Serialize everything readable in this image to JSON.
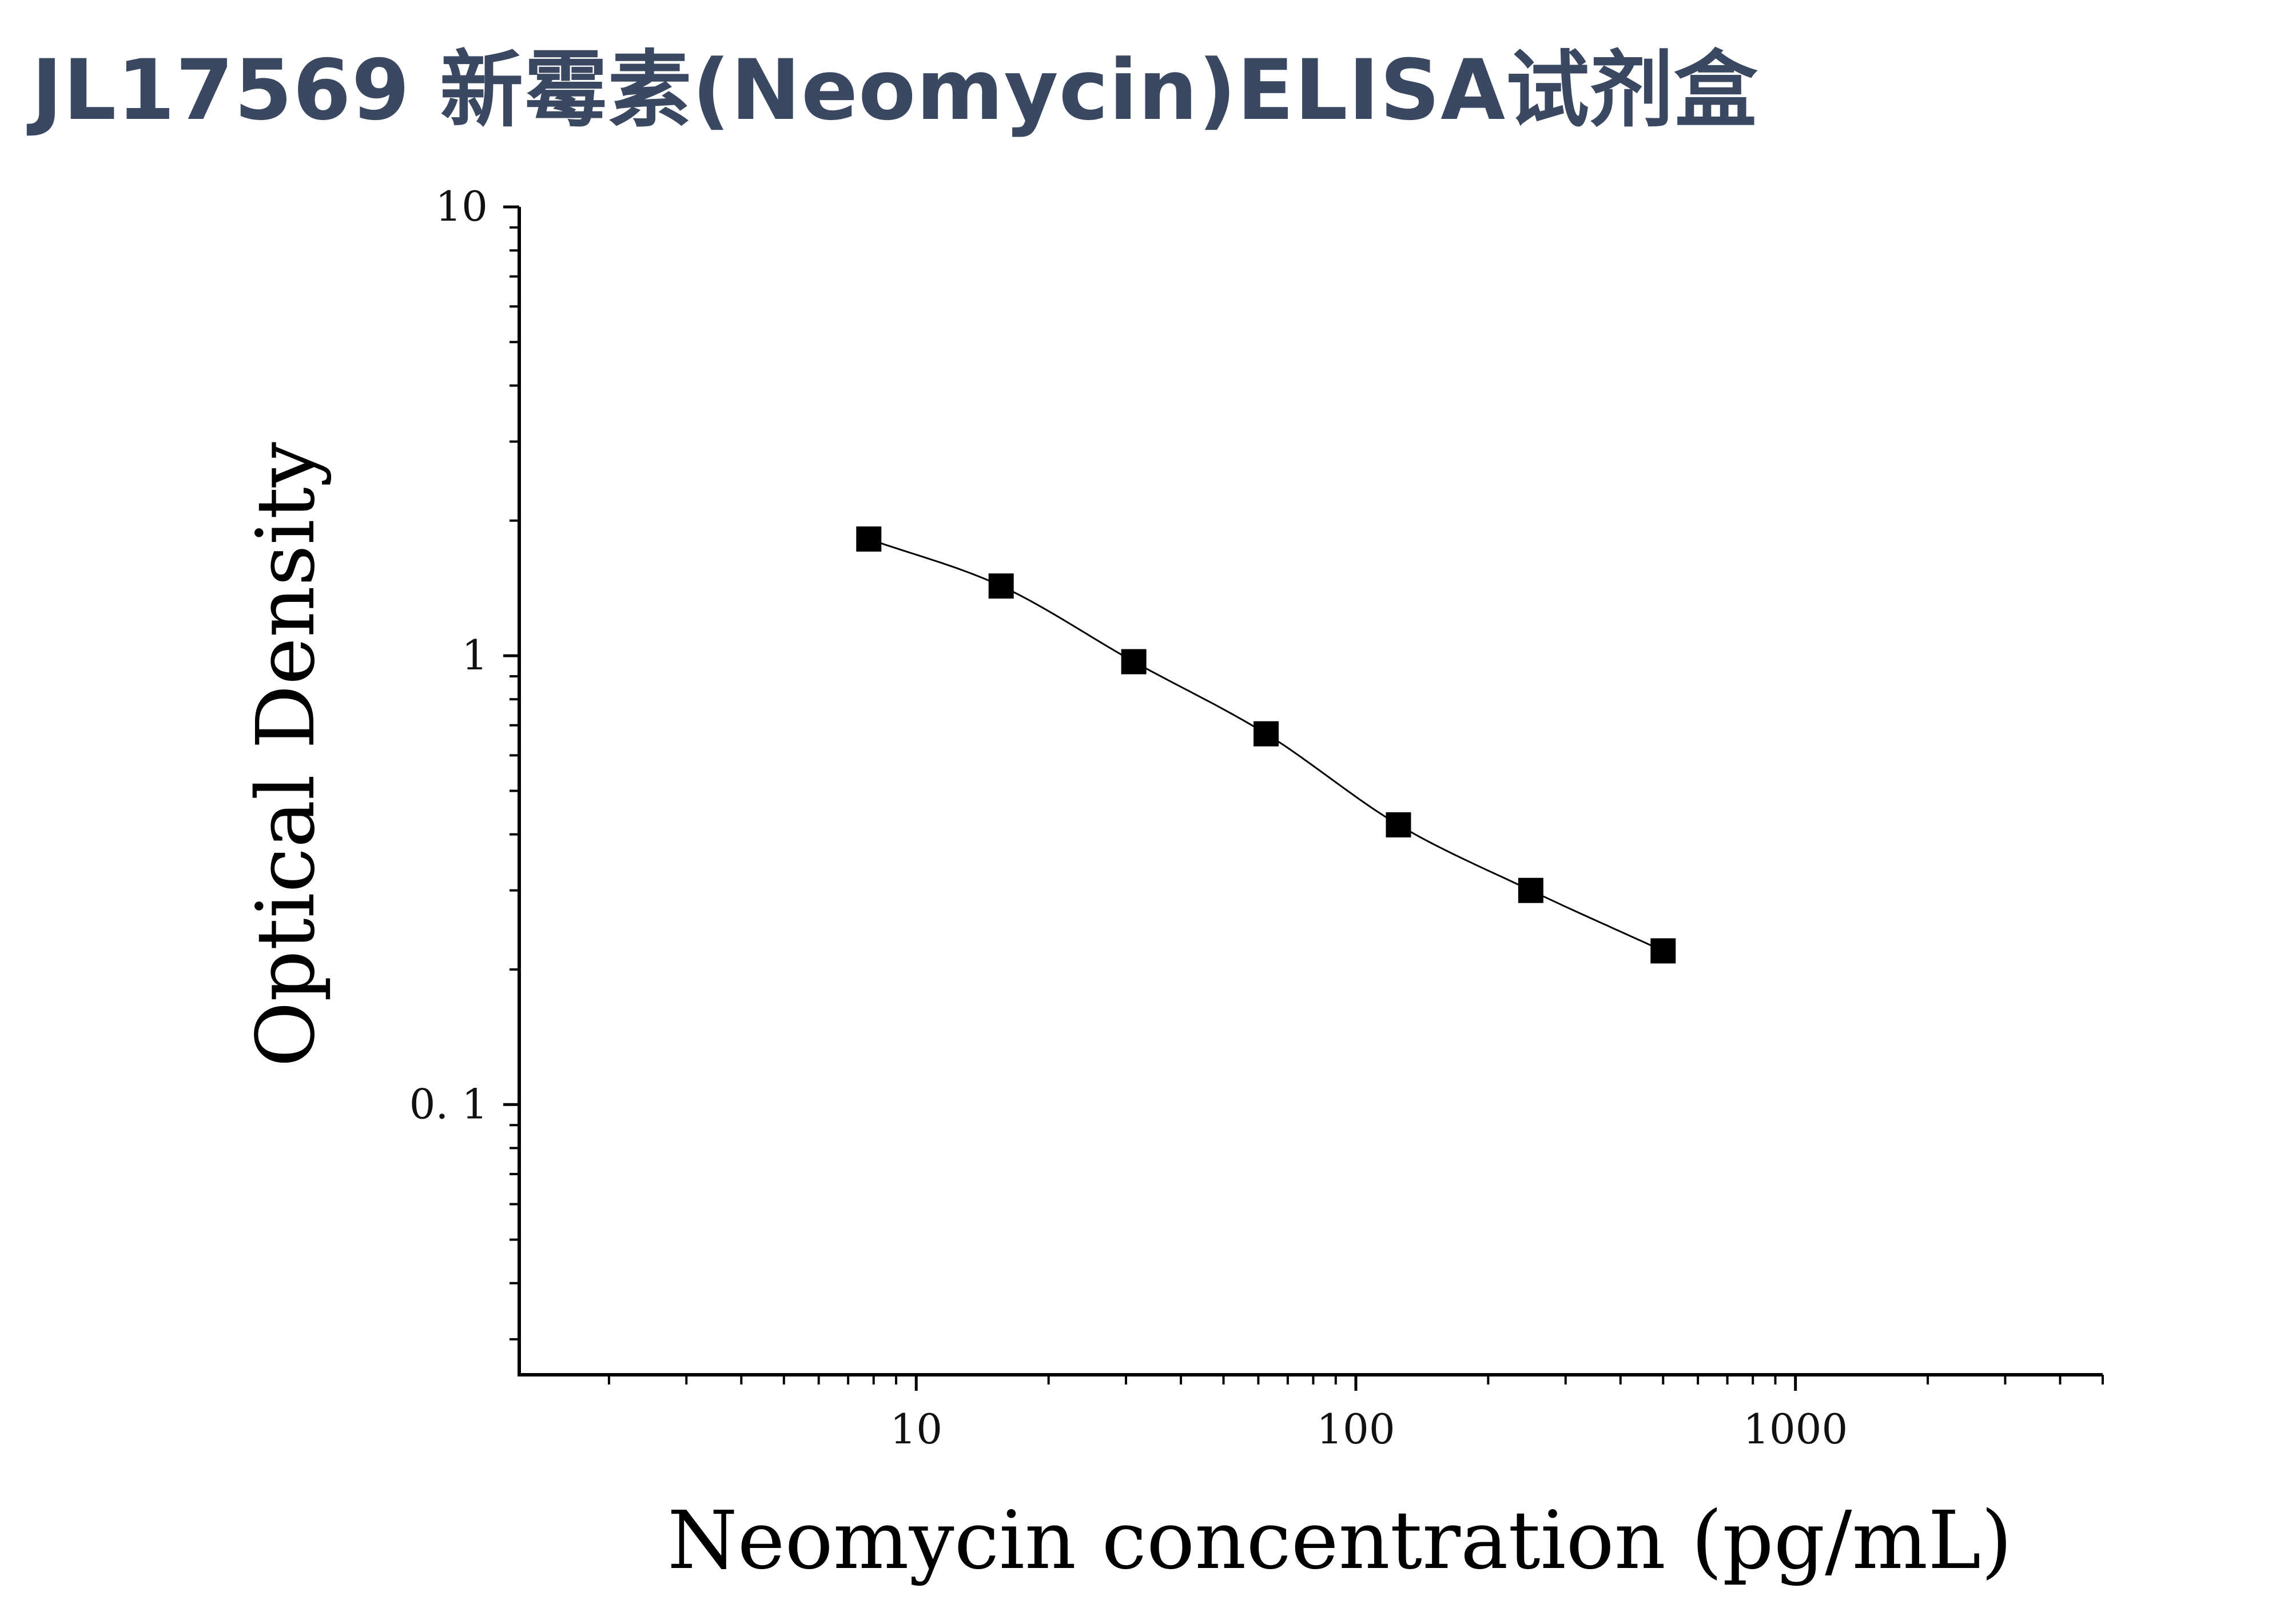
{
  "title": "JL17569 新霉素(Neomycin)ELISA试剂盒",
  "colors": {
    "title": "#3b4862",
    "marker": "#000000",
    "curve": "#000000",
    "axis": "#000000"
  },
  "chart_data": {
    "type": "scatter",
    "xlabel": "Neomycin concentration (pg/mL)",
    "ylabel": "Optical Density",
    "xscale": "log",
    "yscale": "log",
    "xlim": [
      1.25,
      5000
    ],
    "ylim": [
      0.025,
      10
    ],
    "xticks": [
      10,
      100,
      1000
    ],
    "xtick_labels": [
      "10",
      "100",
      "1000"
    ],
    "yticks": [
      0.1,
      1,
      10
    ],
    "ytick_labels": [
      "0. 1",
      "1",
      "10"
    ],
    "grid": false,
    "series": [
      {
        "marker": "square",
        "x": [
          7.8,
          15.6,
          31.25,
          62.5,
          125,
          250,
          500
        ],
        "y": [
          1.82,
          1.43,
          0.97,
          0.67,
          0.42,
          0.3,
          0.22
        ]
      }
    ]
  }
}
